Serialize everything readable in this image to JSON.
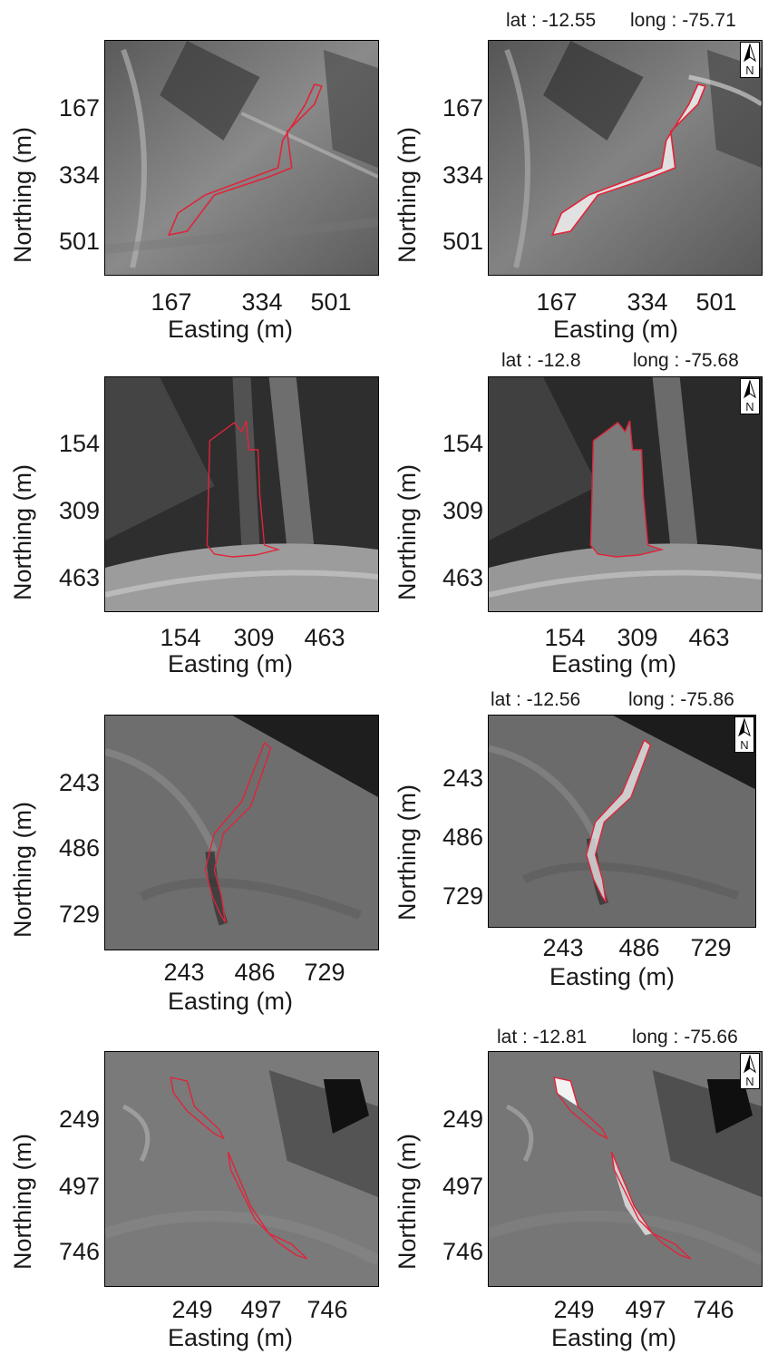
{
  "panels": [
    {
      "xticks": [
        "167",
        "334",
        "501"
      ],
      "yticks": [
        "167",
        "334",
        "501"
      ],
      "xlabel": "Easting (m)",
      "ylabel": "Northing (m)"
    },
    {
      "coords": {
        "lat": "lat : -12.55",
        "long": "long : -75.71"
      },
      "north": "N",
      "xticks": [
        "167",
        "334",
        "501"
      ],
      "yticks": [
        "167",
        "334",
        "501"
      ],
      "xlabel": "Easting (m)",
      "ylabel": "Northing (m)"
    },
    {
      "xticks": [
        "154",
        "309",
        "463"
      ],
      "yticks": [
        "154",
        "309",
        "463"
      ],
      "xlabel": "Easting (m)",
      "ylabel": "Northing (m)"
    },
    {
      "coords": {
        "lat": "lat : -12.8",
        "long": "long : -75.68"
      },
      "north": "N",
      "xticks": [
        "154",
        "309",
        "463"
      ],
      "yticks": [
        "154",
        "309",
        "463"
      ],
      "xlabel": "Easting (m)",
      "ylabel": "Northing (m)"
    },
    {
      "xticks": [
        "243",
        "486",
        "729"
      ],
      "yticks": [
        "243",
        "486",
        "729"
      ],
      "xlabel": "Easting (m)",
      "ylabel": "Northing (m)"
    },
    {
      "coords": {
        "lat": "lat : -12.56",
        "long": "long : -75.86"
      },
      "north": "N",
      "xticks": [
        "243",
        "486",
        "729"
      ],
      "yticks": [
        "243",
        "486",
        "729"
      ],
      "xlabel": "Easting (m)",
      "ylabel": "Northing (m)"
    },
    {
      "xticks": [
        "249",
        "497",
        "746"
      ],
      "yticks": [
        "249",
        "497",
        "746"
      ],
      "xlabel": "Easting (m)",
      "ylabel": "Northing (m)"
    },
    {
      "coords": {
        "lat": "lat : -12.81",
        "long": "long : -75.66"
      },
      "north": "N",
      "xticks": [
        "249",
        "497",
        "746"
      ],
      "yticks": [
        "249",
        "497",
        "746"
      ],
      "xlabel": "Easting (m)",
      "ylabel": "Northing (m)"
    }
  ],
  "colors": {
    "outline": "#e0243a",
    "dark": "#2b2b2b",
    "light": "#d8d8d8"
  }
}
